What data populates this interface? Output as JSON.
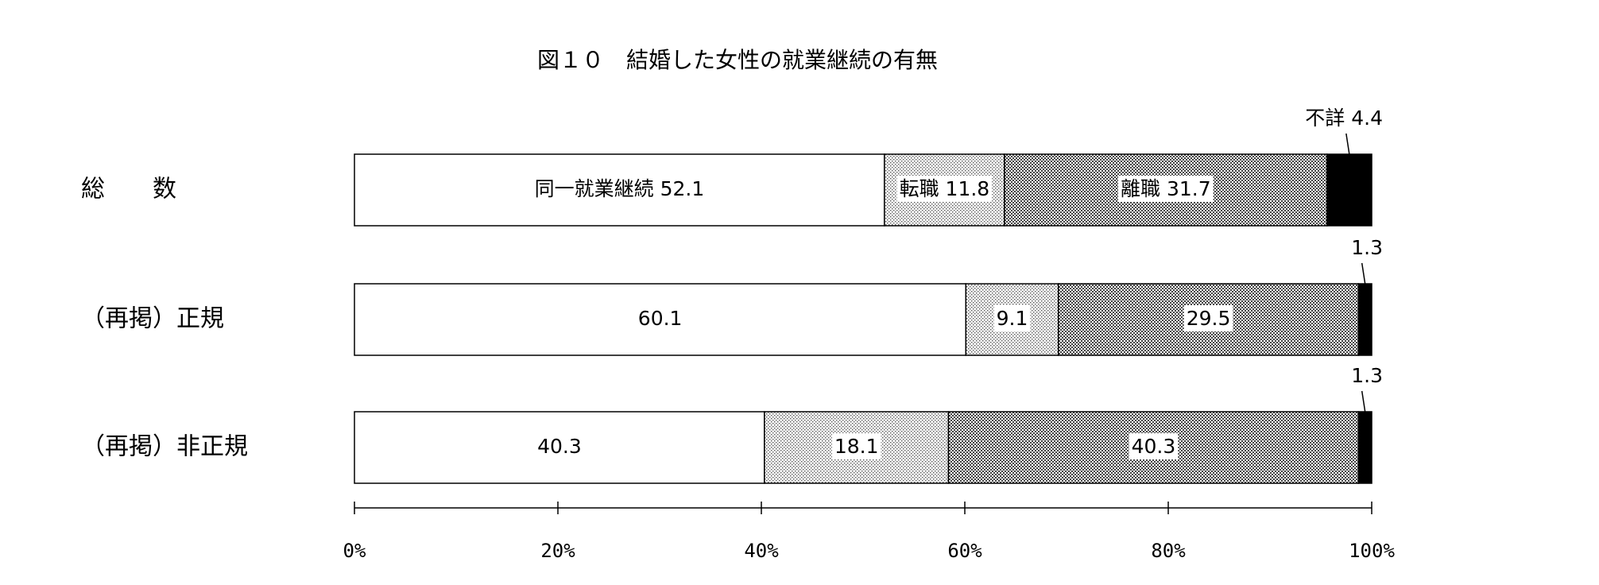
{
  "chart_data": {
    "type": "stacked-bar-horizontal",
    "title": "図１０　結婚した女性の就業継続の有無",
    "categories": [
      "総　　数",
      "（再掲）正規",
      "（再掲）非正規"
    ],
    "series": [
      {
        "name": "同一就業継続",
        "color": "#ffffff",
        "pattern": "none",
        "values": [
          52.1,
          60.1,
          40.3
        ]
      },
      {
        "name": "転職",
        "color": "#bbbbbb",
        "pattern": "dots",
        "values": [
          11.8,
          9.1,
          18.1
        ]
      },
      {
        "name": "離職",
        "color": "#555555",
        "pattern": "checker",
        "values": [
          31.7,
          29.5,
          40.3
        ]
      },
      {
        "name": "不詳",
        "color": "#000000",
        "pattern": "none",
        "values": [
          4.4,
          1.3,
          1.3
        ]
      }
    ],
    "xlim": [
      0,
      100
    ],
    "xticks": [
      {
        "value": 0,
        "label": "0%"
      },
      {
        "value": 20,
        "label": "20%"
      },
      {
        "value": 40,
        "label": "40%"
      },
      {
        "value": 60,
        "label": "60%"
      },
      {
        "value": 80,
        "label": "80%"
      },
      {
        "value": 100,
        "label": "100%"
      }
    ]
  }
}
